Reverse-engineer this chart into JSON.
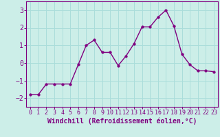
{
  "x": [
    0,
    1,
    2,
    3,
    4,
    5,
    6,
    7,
    8,
    9,
    10,
    11,
    12,
    13,
    14,
    15,
    16,
    17,
    18,
    19,
    20,
    21,
    22,
    23
  ],
  "y": [
    -1.8,
    -1.8,
    -1.2,
    -1.2,
    -1.2,
    -1.2,
    -0.1,
    1.0,
    1.3,
    0.6,
    0.6,
    -0.15,
    0.4,
    1.1,
    2.05,
    2.05,
    2.6,
    3.0,
    2.1,
    0.5,
    -0.1,
    -0.45,
    -0.45,
    -0.5
  ],
  "line_color": "#800080",
  "marker": "o",
  "markersize": 2.5,
  "linewidth": 1.0,
  "background_color": "#cceee8",
  "grid_color": "#aaddda",
  "xlabel": "Windchill (Refroidissement éolien,°C)",
  "xlabel_fontsize": 7,
  "xlim": [
    -0.5,
    23.5
  ],
  "ylim": [
    -2.5,
    3.5
  ],
  "yticks": [
    -2,
    -1,
    0,
    1,
    2,
    3
  ],
  "xtick_labels": [
    "0",
    "1",
    "2",
    "3",
    "4",
    "5",
    "6",
    "7",
    "8",
    "9",
    "10",
    "11",
    "12",
    "13",
    "14",
    "15",
    "16",
    "17",
    "18",
    "19",
    "20",
    "21",
    "22",
    "23"
  ],
  "tick_color": "#800080",
  "ytick_fontsize": 7,
  "xtick_fontsize": 6,
  "spine_color": "#800080"
}
